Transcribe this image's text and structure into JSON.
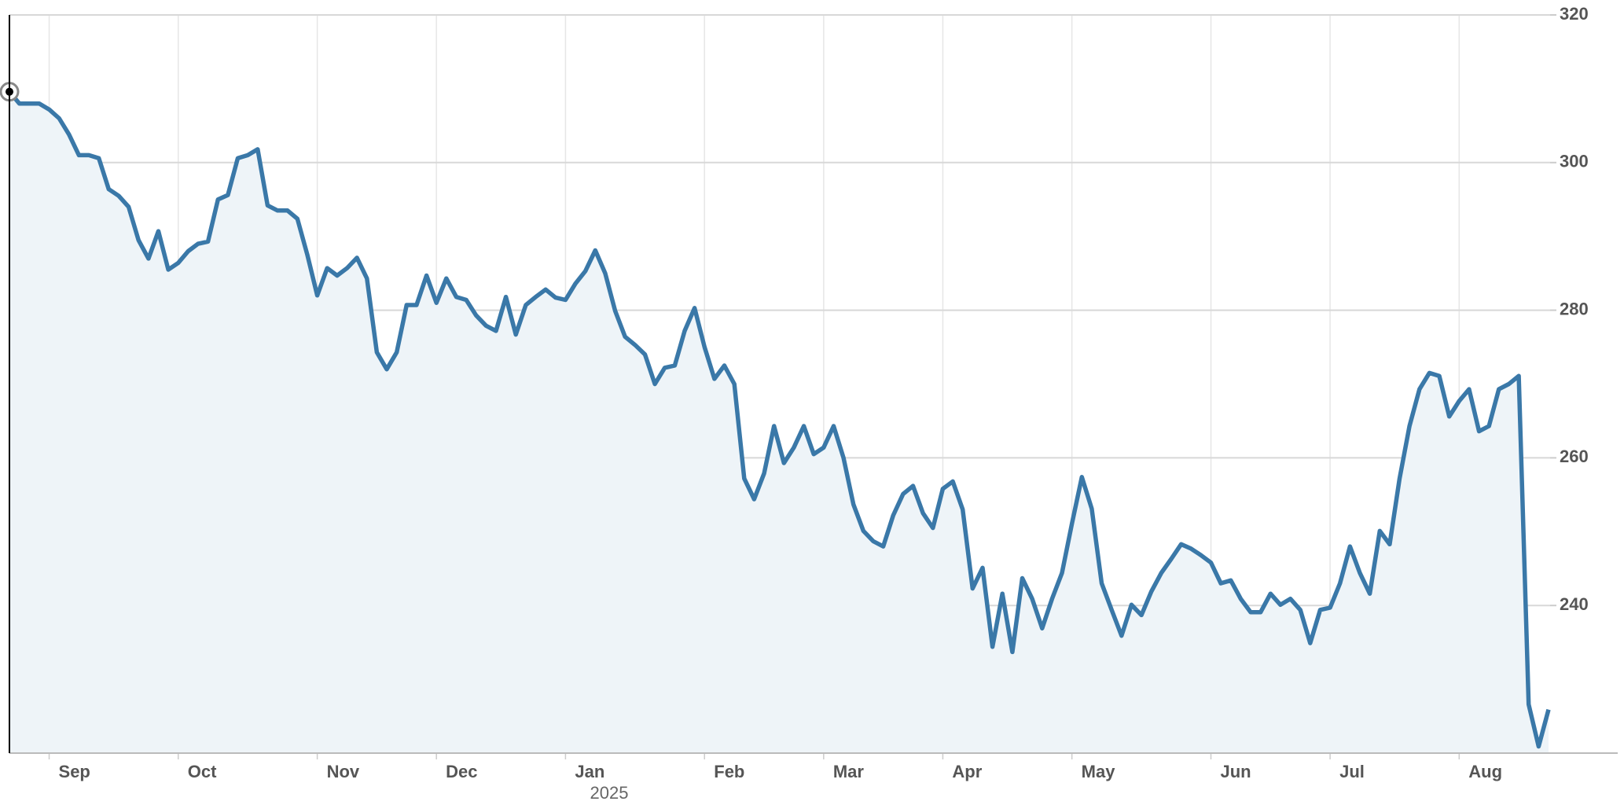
{
  "chart_data": {
    "type": "line",
    "categories": [
      null,
      null,
      null,
      null,
      "Sep",
      null,
      null,
      null,
      null,
      null,
      null,
      null,
      null,
      null,
      null,
      null,
      null,
      "Oct",
      null,
      null,
      null,
      null,
      null,
      null,
      null,
      null,
      null,
      null,
      null,
      null,
      null,
      "Nov",
      null,
      null,
      null,
      null,
      null,
      null,
      null,
      null,
      null,
      null,
      null,
      "Dec",
      null,
      null,
      null,
      null,
      null,
      null,
      null,
      null,
      null,
      null,
      null,
      null,
      "Jan",
      null,
      null,
      null,
      null,
      null,
      null,
      null,
      null,
      null,
      null,
      null,
      null,
      null,
      "Feb",
      null,
      null,
      null,
      null,
      null,
      null,
      null,
      null,
      null,
      null,
      null,
      "Mar",
      null,
      null,
      null,
      null,
      null,
      null,
      null,
      null,
      null,
      null,
      null,
      "Apr",
      null,
      null,
      null,
      null,
      null,
      null,
      null,
      null,
      null,
      null,
      null,
      null,
      "May",
      null,
      null,
      null,
      null,
      null,
      null,
      null,
      null,
      null,
      null,
      null,
      null,
      null,
      "Jun",
      null,
      null,
      null,
      null,
      null,
      null,
      null,
      null,
      null,
      null,
      null,
      "Jul",
      null,
      null,
      null,
      null,
      null,
      null,
      null,
      null,
      null,
      null,
      null,
      null,
      "Aug",
      null,
      null,
      null,
      null,
      null,
      null,
      null,
      null,
      null
    ],
    "values": [
      309.6,
      308,
      308,
      308,
      307.2,
      306,
      303.8,
      301,
      301,
      300.6,
      296.4,
      295.5,
      294,
      289.5,
      287,
      290.7,
      285.5,
      286.4,
      288,
      289,
      289.3,
      295,
      295.6,
      300.6,
      301,
      301.8,
      294.2,
      293.5,
      293.5,
      292.4,
      287.5,
      282,
      285.7,
      284.7,
      285.7,
      287.1,
      284.3,
      274.3,
      272,
      274.3,
      280.7,
      280.7,
      284.7,
      281,
      284.3,
      281.8,
      281.4,
      279.3,
      277.9,
      277.2,
      281.8,
      276.7,
      280.7,
      281.8,
      282.8,
      281.7,
      281.4,
      283.6,
      285.3,
      288.1,
      285,
      279.9,
      276.4,
      275.3,
      274,
      270,
      272.2,
      272.5,
      277.2,
      280.3,
      275,
      270.7,
      272.5,
      270,
      257.2,
      254.4,
      257.9,
      264.3,
      259.3,
      261.4,
      264.3,
      260.5,
      261.4,
      264.3,
      260,
      253.7,
      250.1,
      248.7,
      248,
      252.2,
      255.1,
      256.2,
      252.5,
      250.5,
      255.8,
      256.8,
      253,
      242.3,
      245.1,
      234.4,
      241.6,
      233.7,
      243.7,
      240.9,
      236.9,
      240.9,
      244.4,
      251.1,
      257.4,
      253.1,
      243,
      239.4,
      235.9,
      240.1,
      238.7,
      241.9,
      244.4,
      246.3,
      248.3,
      247.7,
      246.8,
      245.8,
      243,
      243.4,
      240.9,
      239.1,
      239.1,
      241.6,
      240.1,
      240.9,
      239.4,
      234.9,
      239.4,
      239.7,
      243,
      248,
      244.4,
      241.6,
      250.1,
      248.3,
      257.2,
      264.3,
      269.3,
      271.5,
      271.1,
      265.6,
      267.7,
      269.3,
      263.6,
      264.3,
      269.3,
      270,
      271.1,
      226.6,
      220.9,
      225.9
    ],
    "color": "#3a78a8",
    "year_label": "2025",
    "ylim": [
      220,
      320
    ],
    "yticks": [
      240,
      260,
      280,
      300,
      320
    ],
    "grid": true
  }
}
